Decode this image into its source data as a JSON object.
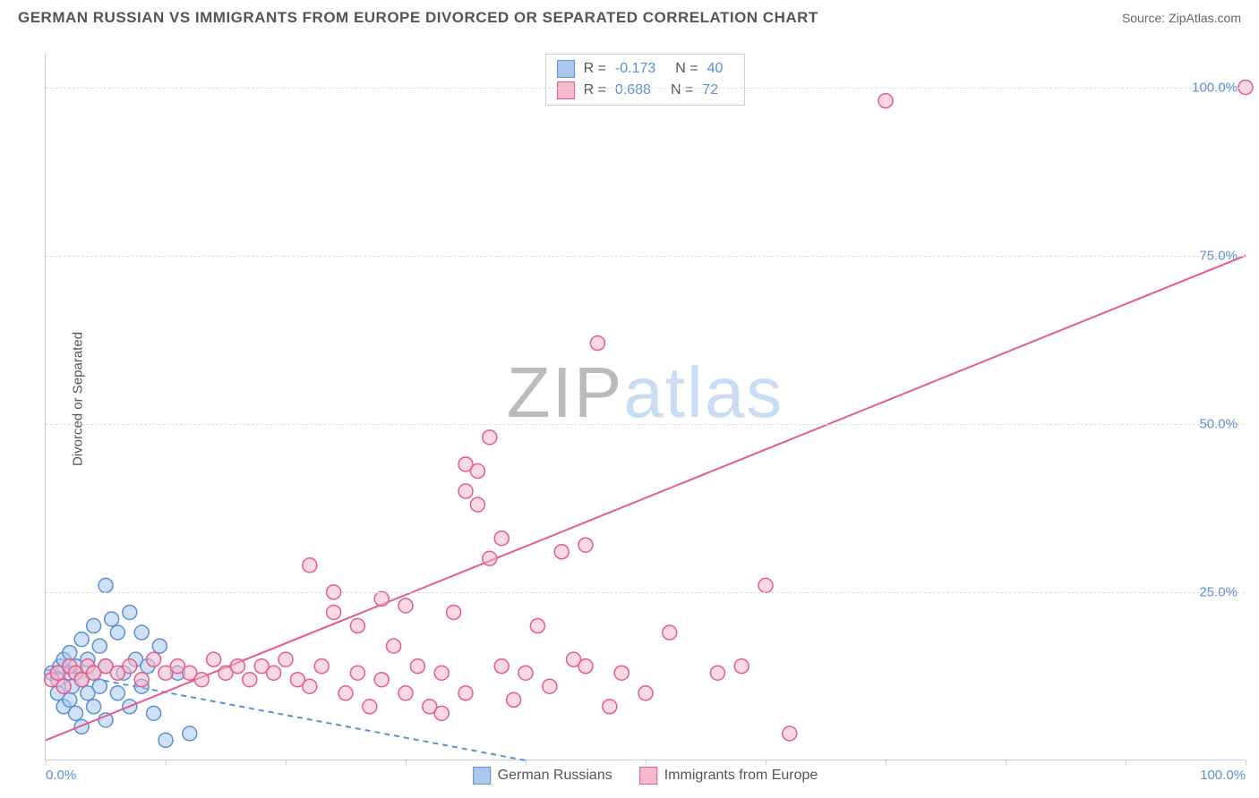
{
  "title": "GERMAN RUSSIAN VS IMMIGRANTS FROM EUROPE DIVORCED OR SEPARATED CORRELATION CHART",
  "source": "Source: ZipAtlas.com",
  "y_axis_label": "Divorced or Separated",
  "watermark": {
    "part1": "ZIP",
    "part2": "atlas"
  },
  "chart": {
    "type": "scatter",
    "xlim": [
      0,
      100
    ],
    "ylim": [
      0,
      105
    ],
    "x_ticks": [
      0,
      10,
      20,
      30,
      40,
      50,
      60,
      70,
      80,
      90,
      100
    ],
    "x_tick_labels": {
      "0": "0.0%",
      "100": "100.0%"
    },
    "y_ticks": [
      25,
      50,
      75,
      100
    ],
    "y_tick_labels": {
      "25": "25.0%",
      "50": "50.0%",
      "75": "75.0%",
      "100": "100.0%"
    },
    "grid_color": "#dddddd",
    "background_color": "#ffffff",
    "tick_label_color": "#5b8fd6",
    "marker_radius": 8,
    "marker_stroke_width": 1.5,
    "line_width": 2
  },
  "series": [
    {
      "label": "German Russians",
      "fill_color": "#a9c8ec",
      "fill_opacity": 0.55,
      "stroke_color": "#5b8fd6",
      "R": "-0.173",
      "N": "40",
      "trend": {
        "x1": 0,
        "y1": 13.5,
        "x2": 40,
        "y2": 0,
        "dash": "6,5"
      },
      "points": [
        [
          0.5,
          13
        ],
        [
          1,
          10
        ],
        [
          1,
          12
        ],
        [
          1.2,
          14
        ],
        [
          1.5,
          8
        ],
        [
          1.5,
          15
        ],
        [
          2,
          9
        ],
        [
          2,
          13
        ],
        [
          2,
          16
        ],
        [
          2.2,
          11
        ],
        [
          2.5,
          7
        ],
        [
          2.5,
          14
        ],
        [
          3,
          5
        ],
        [
          3,
          12
        ],
        [
          3,
          18
        ],
        [
          3.5,
          10
        ],
        [
          3.5,
          15
        ],
        [
          4,
          8
        ],
        [
          4,
          13
        ],
        [
          4,
          20
        ],
        [
          4.5,
          11
        ],
        [
          4.5,
          17
        ],
        [
          5,
          6
        ],
        [
          5,
          14
        ],
        [
          5.5,
          21
        ],
        [
          6,
          10
        ],
        [
          6,
          19
        ],
        [
          6.5,
          13
        ],
        [
          7,
          8
        ],
        [
          7,
          22
        ],
        [
          7.5,
          15
        ],
        [
          8,
          11
        ],
        [
          8,
          19
        ],
        [
          8.5,
          14
        ],
        [
          9,
          7
        ],
        [
          9.5,
          17
        ],
        [
          10,
          3
        ],
        [
          11,
          13
        ],
        [
          12,
          4
        ],
        [
          5,
          26
        ]
      ]
    },
    {
      "label": "Immigrants from Europe",
      "fill_color": "#f4b9cb",
      "fill_opacity": 0.55,
      "stroke_color": "#e75a8d",
      "R": "0.688",
      "N": "72",
      "trend": {
        "x1": 0,
        "y1": 3,
        "x2": 100,
        "y2": 75,
        "dash": null
      },
      "points": [
        [
          0.5,
          12
        ],
        [
          1,
          13
        ],
        [
          1.5,
          11
        ],
        [
          2,
          14
        ],
        [
          2.5,
          13
        ],
        [
          3,
          12
        ],
        [
          3.5,
          14
        ],
        [
          4,
          13
        ],
        [
          5,
          14
        ],
        [
          6,
          13
        ],
        [
          7,
          14
        ],
        [
          8,
          12
        ],
        [
          9,
          15
        ],
        [
          10,
          13
        ],
        [
          11,
          14
        ],
        [
          12,
          13
        ],
        [
          13,
          12
        ],
        [
          14,
          15
        ],
        [
          15,
          13
        ],
        [
          16,
          14
        ],
        [
          17,
          12
        ],
        [
          18,
          14
        ],
        [
          19,
          13
        ],
        [
          20,
          15
        ],
        [
          21,
          12
        ],
        [
          22,
          11
        ],
        [
          23,
          14
        ],
        [
          24,
          22
        ],
        [
          25,
          10
        ],
        [
          26,
          13
        ],
        [
          27,
          8
        ],
        [
          28,
          12
        ],
        [
          29,
          17
        ],
        [
          30,
          10
        ],
        [
          31,
          14
        ],
        [
          22,
          29
        ],
        [
          24,
          25
        ],
        [
          28,
          24
        ],
        [
          30,
          23
        ],
        [
          26,
          20
        ],
        [
          32,
          8
        ],
        [
          33,
          13
        ],
        [
          34,
          22
        ],
        [
          35,
          10
        ],
        [
          35,
          40
        ],
        [
          35,
          44
        ],
        [
          36,
          38
        ],
        [
          36,
          43
        ],
        [
          37,
          30
        ],
        [
          37,
          48
        ],
        [
          38,
          14
        ],
        [
          38,
          33
        ],
        [
          39,
          9
        ],
        [
          40,
          13
        ],
        [
          41,
          20
        ],
        [
          42,
          11
        ],
        [
          43,
          31
        ],
        [
          44,
          15
        ],
        [
          45,
          32
        ],
        [
          45,
          14
        ],
        [
          46,
          62
        ],
        [
          47,
          8
        ],
        [
          48,
          13
        ],
        [
          52,
          19
        ],
        [
          56,
          13
        ],
        [
          58,
          14
        ],
        [
          60,
          26
        ],
        [
          62,
          4
        ],
        [
          70,
          98
        ],
        [
          100,
          100
        ],
        [
          33,
          7
        ],
        [
          50,
          10
        ]
      ]
    }
  ],
  "stats_box": {
    "R_label": "R =",
    "N_label": "N ="
  },
  "legend_bottom": [
    "German Russians",
    "Immigrants from Europe"
  ]
}
